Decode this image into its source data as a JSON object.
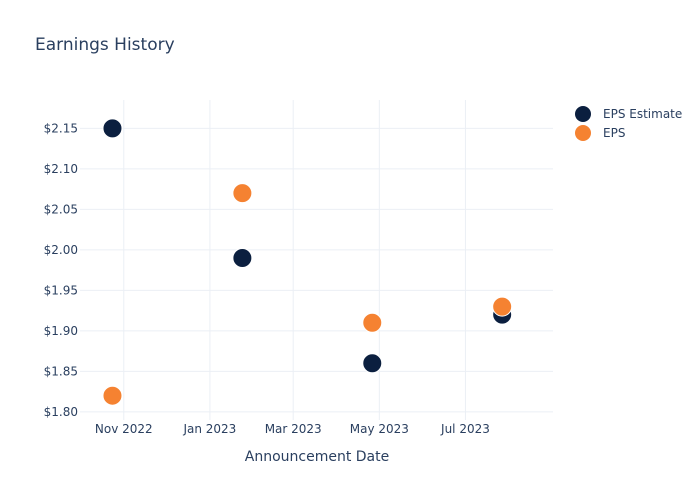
{
  "chart_data": {
    "type": "scatter",
    "title": "Earnings History",
    "xlabel": "Announcement Date",
    "ylabel": "",
    "x_ticks": [
      {
        "date": "2022-11-01",
        "label": "Nov 2022"
      },
      {
        "date": "2023-01-01",
        "label": "Jan 2023"
      },
      {
        "date": "2023-03-01",
        "label": "Mar 2023"
      },
      {
        "date": "2023-05-01",
        "label": "May 2023"
      },
      {
        "date": "2023-07-01",
        "label": "Jul 2023"
      }
    ],
    "y_ticks": [
      {
        "value": 1.8,
        "label": "$1.80"
      },
      {
        "value": 1.85,
        "label": "$1.85"
      },
      {
        "value": 1.9,
        "label": "$1.90"
      },
      {
        "value": 1.95,
        "label": "$1.95"
      },
      {
        "value": 2.0,
        "label": "$2.00"
      },
      {
        "value": 2.05,
        "label": "$2.05"
      },
      {
        "value": 2.1,
        "label": "$2.10"
      },
      {
        "value": 2.15,
        "label": "$2.15"
      }
    ],
    "xlim": [
      "2022-10-01",
      "2023-09-01"
    ],
    "ylim": [
      1.79,
      2.185
    ],
    "grid": true,
    "legend": "top-right",
    "series": [
      {
        "name": "EPS Estimate",
        "color": "#0b1f3f",
        "points": [
          {
            "x": "2022-10-24",
            "y": 2.15
          },
          {
            "x": "2023-01-24",
            "y": 1.99
          },
          {
            "x": "2023-04-26",
            "y": 1.86
          },
          {
            "x": "2023-07-27",
            "y": 1.92
          }
        ]
      },
      {
        "name": "EPS",
        "color": "#f58231",
        "points": [
          {
            "x": "2022-10-24",
            "y": 1.82
          },
          {
            "x": "2023-01-24",
            "y": 2.07
          },
          {
            "x": "2023-04-26",
            "y": 1.91
          },
          {
            "x": "2023-07-27",
            "y": 1.93
          }
        ]
      }
    ]
  }
}
